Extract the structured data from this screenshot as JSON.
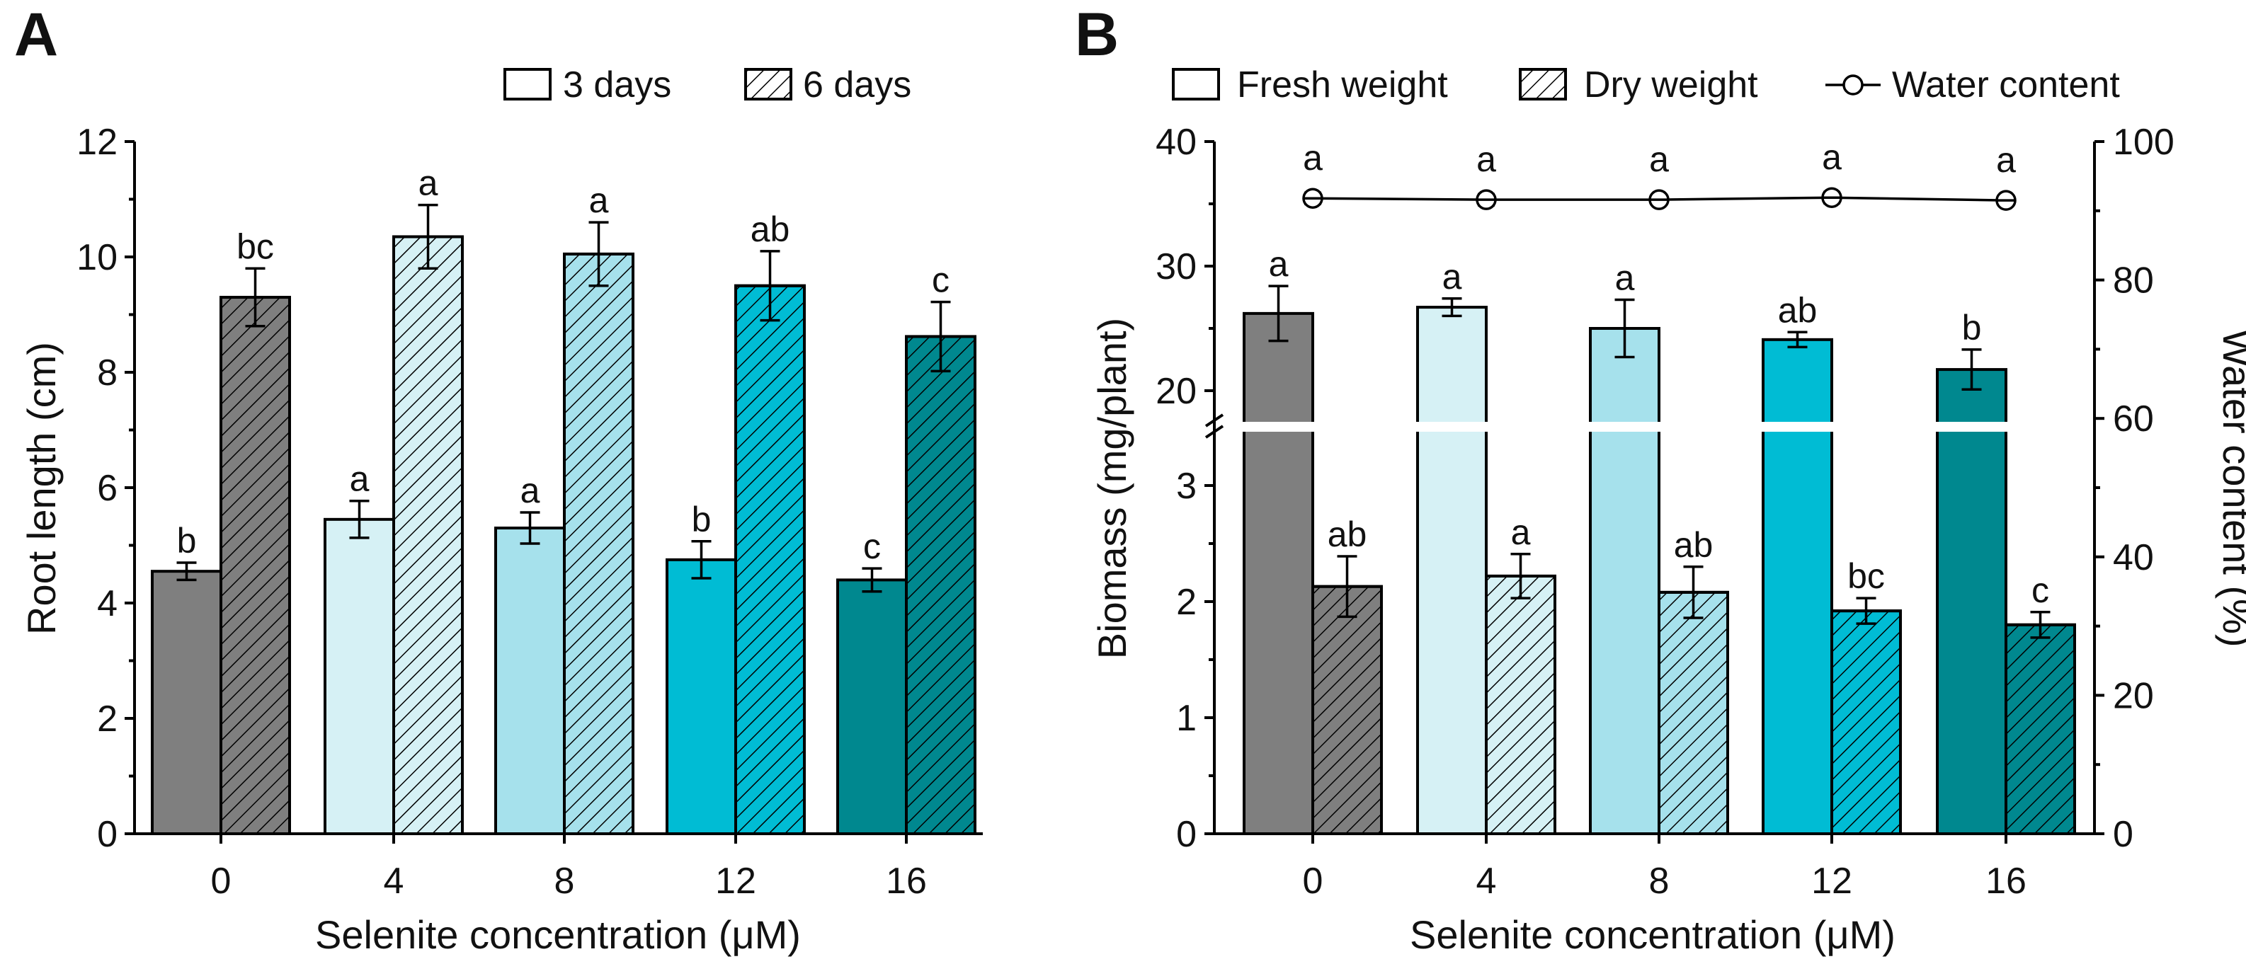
{
  "panels": {
    "A": {
      "letter": "A",
      "xlabel": "Selenite concentration (μM)",
      "ylabel": "Root length (cm)",
      "legend": [
        "3 days",
        "6 days"
      ]
    },
    "B": {
      "letter": "B",
      "xlabel": "Selenite concentration (μM)",
      "ylabel_left": "Biomass (mg/plant)",
      "ylabel_right": "Water content (%)",
      "legend": [
        "Fresh weight",
        "Dry weight",
        "Water content"
      ]
    }
  },
  "colors": {
    "0": "#7f7f7f",
    "4": "#d6f1f5",
    "8": "#a6e1ec",
    "12": "#00bcd4",
    "16": "#00888f"
  },
  "chart_data": [
    {
      "panel": "A",
      "type": "bar",
      "title": "",
      "xlabel": "Selenite concentration (μM)",
      "ylabel": "Root length (cm)",
      "categories": [
        "0",
        "4",
        "8",
        "12",
        "16"
      ],
      "ylim": [
        0,
        12
      ],
      "yticks": [
        0,
        2,
        4,
        6,
        8,
        10,
        12
      ],
      "legend_position": "top-right",
      "series": [
        {
          "name": "3 days",
          "pattern": "solid",
          "values": [
            4.55,
            5.45,
            5.3,
            4.75,
            4.4
          ],
          "errors": [
            0.15,
            0.32,
            0.27,
            0.32,
            0.2
          ],
          "letters": [
            "b",
            "a",
            "a",
            "b",
            "c"
          ]
        },
        {
          "name": "6 days",
          "pattern": "hatched",
          "values": [
            9.3,
            10.35,
            10.05,
            9.5,
            8.62
          ],
          "errors": [
            0.5,
            0.55,
            0.55,
            0.6,
            0.6
          ],
          "letters": [
            "bc",
            "a",
            "a",
            "ab",
            "c"
          ]
        }
      ]
    },
    {
      "panel": "B",
      "type": "bar",
      "title": "",
      "xlabel": "Selenite concentration (μM)",
      "ylabel": "Biomass (mg/plant)",
      "ylabel_right": "Water content (%)",
      "categories": [
        "0",
        "4",
        "8",
        "12",
        "16"
      ],
      "y_axis_break": {
        "lower": [
          0,
          3.5
        ],
        "upper": [
          17.5,
          40
        ]
      },
      "yticks_lower": [
        0,
        1,
        2,
        3
      ],
      "yticks_upper": [
        20,
        30,
        40
      ],
      "y2lim": [
        0,
        100
      ],
      "y2ticks": [
        0,
        20,
        40,
        60,
        80,
        100
      ],
      "legend_position": "top",
      "series": [
        {
          "name": "Fresh weight",
          "pattern": "solid",
          "values": [
            26.2,
            26.7,
            25.0,
            24.1,
            21.7
          ],
          "errors": [
            2.2,
            0.7,
            2.3,
            0.6,
            1.6
          ],
          "letters": [
            "a",
            "a",
            "a",
            "ab",
            "b"
          ]
        },
        {
          "name": "Dry weight",
          "pattern": "hatched",
          "values": [
            2.13,
            2.22,
            2.08,
            1.92,
            1.8
          ],
          "errors": [
            0.26,
            0.19,
            0.22,
            0.11,
            0.11
          ],
          "letters": [
            "ab",
            "a",
            "ab",
            "bc",
            "c"
          ]
        },
        {
          "name": "Water content",
          "type": "line",
          "axis": "right",
          "values": [
            91.8,
            91.6,
            91.6,
            91.9,
            91.5
          ],
          "errors": [
            0.8,
            0.8,
            0.7,
            0.8,
            0.7
          ],
          "letters": [
            "a",
            "a",
            "a",
            "a",
            "a"
          ]
        }
      ]
    }
  ]
}
